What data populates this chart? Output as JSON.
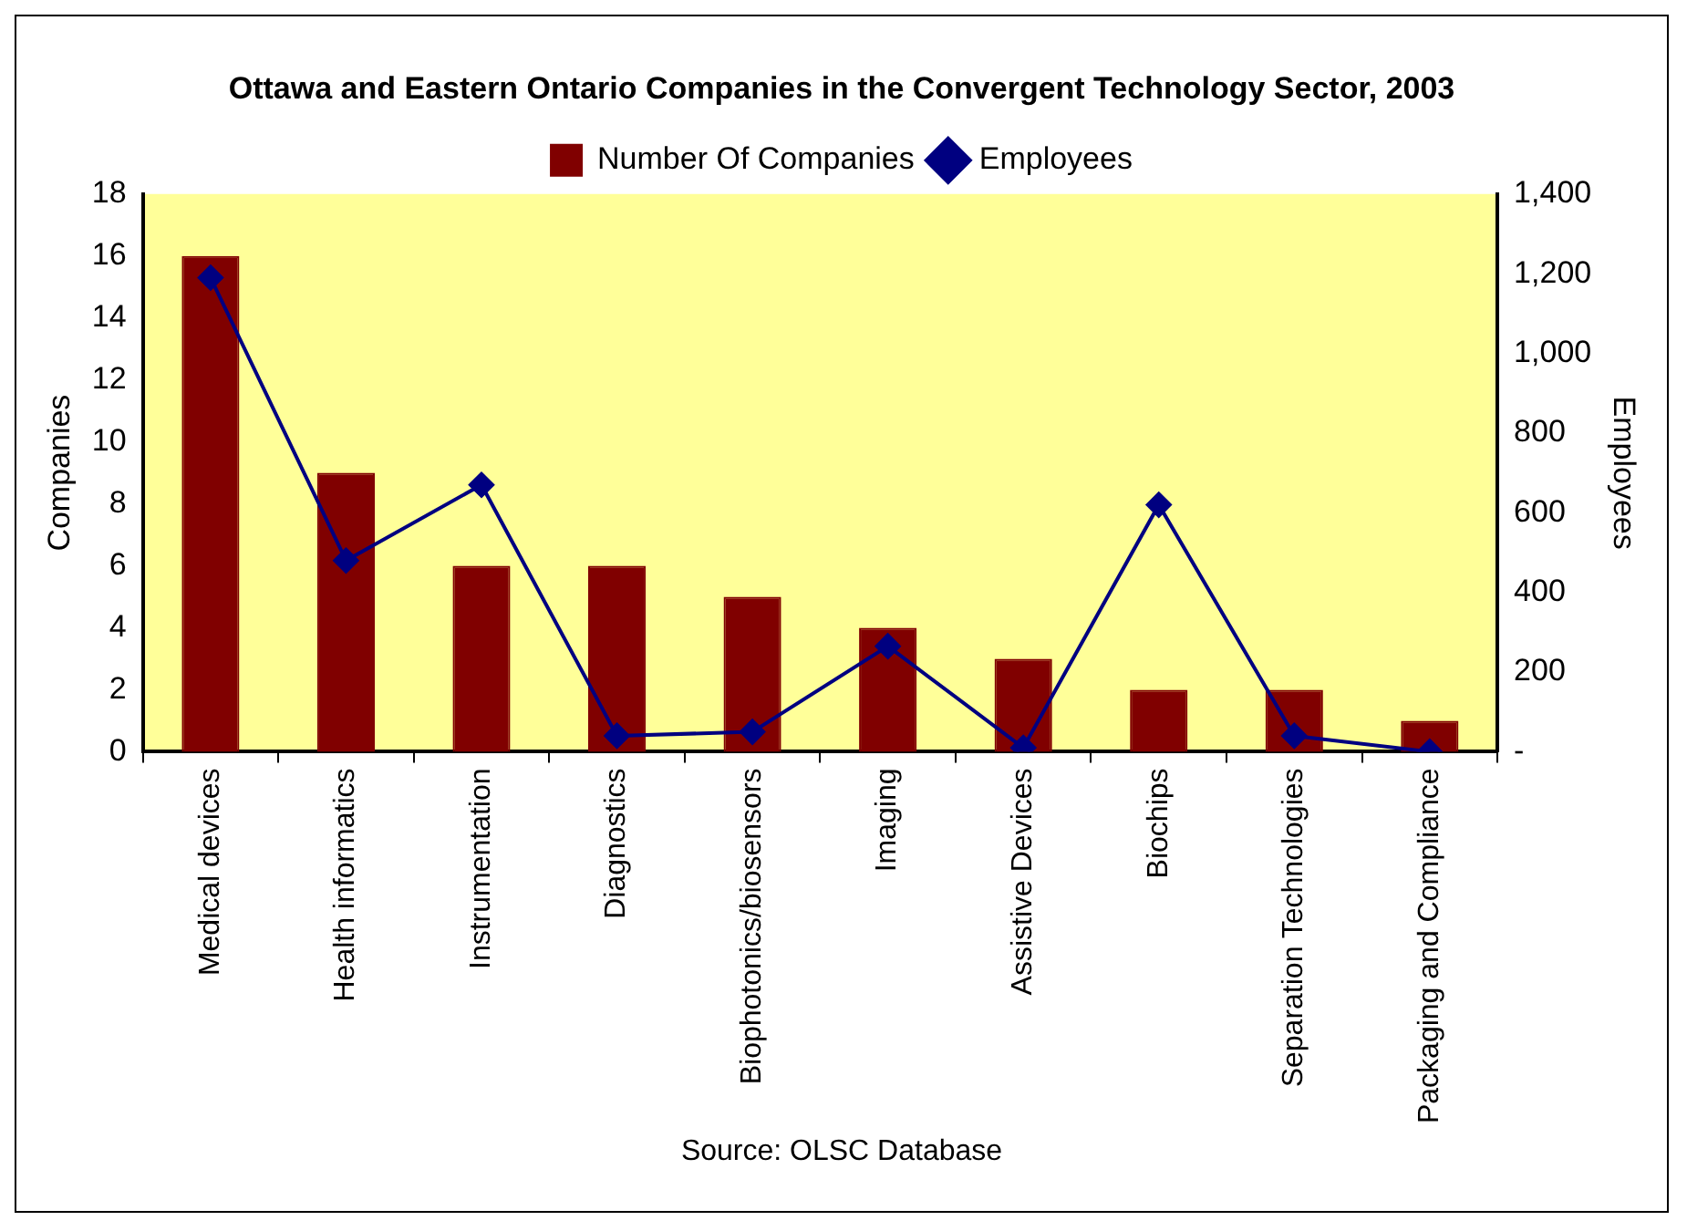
{
  "chart_data": {
    "type": "bar",
    "title": "Ottawa and Eastern Ontario Companies in the Convergent Technology Sector, 2003",
    "categories": [
      "Medical devices",
      "Health informatics",
      "Instrumentation",
      "Diagnostics",
      "Biophotonics/biosensors",
      "Imaging",
      "Assistive Devices",
      "Biochips",
      "Separation Technologies",
      "Packaging and Compliance"
    ],
    "series": [
      {
        "name": "Number Of Companies",
        "color": "#800000",
        "values": [
          16,
          9,
          6,
          6,
          5,
          4,
          3,
          2,
          2,
          1
        ]
      },
      {
        "name": "Employees",
        "type": "line",
        "axis": "y2",
        "color": "#000080",
        "marker": "diamond",
        "values": [
          1190,
          480,
          670,
          40,
          50,
          265,
          10,
          620,
          40,
          0
        ]
      }
    ],
    "ylabel": "Companies",
    "y2label": "Employees",
    "ylim": [
      0,
      18
    ],
    "yticks": [
      0,
      2,
      4,
      6,
      8,
      10,
      12,
      14,
      16,
      18
    ],
    "y2lim": [
      0,
      1400
    ],
    "y2ticks": [
      {
        "value": 0,
        "label": "-"
      },
      {
        "value": 200,
        "label": "200"
      },
      {
        "value": 400,
        "label": "400"
      },
      {
        "value": 600,
        "label": "600"
      },
      {
        "value": 800,
        "label": "800"
      },
      {
        "value": 1000,
        "label": "1,000"
      },
      {
        "value": 1200,
        "label": "1,200"
      },
      {
        "value": 1400,
        "label": "1,400"
      }
    ],
    "grid": false,
    "legend": "top",
    "annotations": [
      "Source: OLSC Database"
    ]
  }
}
